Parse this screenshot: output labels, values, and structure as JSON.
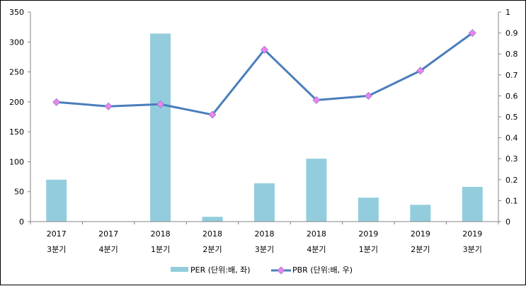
{
  "chart_data": {
    "type": "bar+line",
    "categories": [
      [
        "2017",
        "3분기"
      ],
      [
        "2017",
        "4분기"
      ],
      [
        "2018",
        "1분기"
      ],
      [
        "2018",
        "2분기"
      ],
      [
        "2018",
        "3분기"
      ],
      [
        "2018",
        "4분기"
      ],
      [
        "2019",
        "1분기"
      ],
      [
        "2019",
        "2분기"
      ],
      [
        "2019",
        "3분기"
      ]
    ],
    "series": [
      {
        "name": "PER (단위:배, 좌)",
        "type": "bar",
        "axis": "left",
        "color": "#93CDDD",
        "values": [
          70,
          0,
          314,
          8,
          64,
          105,
          40,
          28,
          58
        ]
      },
      {
        "name": "PBR (단위:배, 우)",
        "type": "line",
        "axis": "right",
        "color": "#4A7EBB",
        "marker_color": "#EE82EE",
        "values": [
          0.57,
          0.55,
          0.56,
          0.51,
          0.82,
          0.58,
          0.6,
          0.72,
          0.9
        ]
      }
    ],
    "left_axis": {
      "ylim": [
        0,
        350
      ],
      "ticks": [
        "0",
        "50",
        "100",
        "150",
        "200",
        "250",
        "300",
        "350"
      ]
    },
    "right_axis": {
      "ylim": [
        0,
        1
      ],
      "ticks": [
        "0",
        "0.1",
        "0.2",
        "0.3",
        "0.4",
        "0.5",
        "0.6",
        "0.7",
        "0.8",
        "0.9",
        "1"
      ]
    },
    "grid": false,
    "legend": "bottom"
  }
}
